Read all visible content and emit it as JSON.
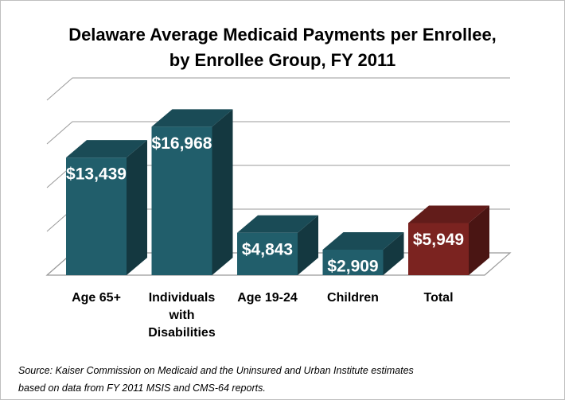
{
  "chart_data": {
    "type": "bar3d",
    "title": [
      "Delaware Average Medicaid Payments per Enrollee,",
      "by Enrollee Group, FY 2011"
    ],
    "categories": [
      "Age 65+",
      "Individuals with Disabilities",
      "Age 19-24",
      "Children",
      "Total"
    ],
    "values": [
      13439,
      16968,
      4843,
      2909,
      5949
    ],
    "value_labels": [
      "$13,439",
      "$16,968",
      "$4,843",
      "$2,909",
      "$5,949"
    ],
    "colors": [
      "#215e6b",
      "#215e6b",
      "#215e6b",
      "#215e6b",
      "#7b2320"
    ],
    "ylim": [
      0,
      20000
    ],
    "yticks": [
      0,
      5000,
      10000,
      15000,
      20000
    ],
    "grid": true,
    "source": [
      "Source:  Kaiser Commission on Medicaid and the Uninsured and Urban Institute estimates",
      "based on data from FY 2011 MSIS and CMS-64 reports."
    ]
  }
}
